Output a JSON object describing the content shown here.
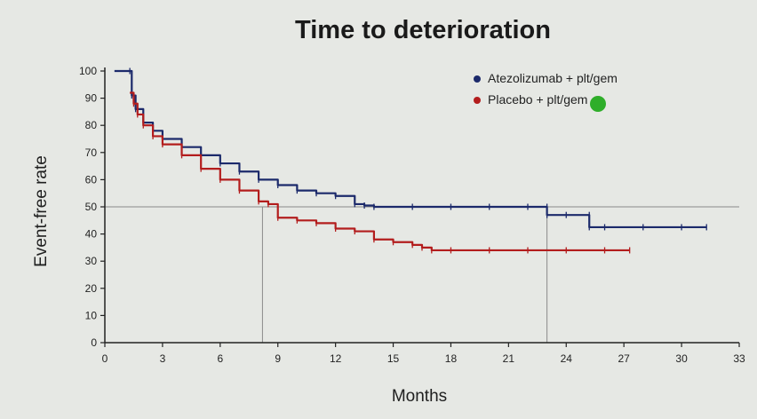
{
  "colors": {
    "atezolizumab": "#1c2a6b",
    "placebo": "#b31d1d",
    "axis": "#222222",
    "reference_line": "#8a8a8a",
    "marker_dot": "#2fae2a"
  },
  "chart_data": {
    "type": "line",
    "title": "Time to deterioration",
    "xlabel": "Months",
    "ylabel": "Event-free rate",
    "xlim": [
      0,
      33
    ],
    "ylim": [
      0,
      100
    ],
    "xticks": [
      "0",
      "3",
      "6",
      "9",
      "12",
      "15",
      "18",
      "21",
      "24",
      "27",
      "30",
      "33"
    ],
    "yticks": [
      "0",
      "10",
      "20",
      "30",
      "40",
      "50",
      "60",
      "70",
      "80",
      "90",
      "100"
    ],
    "grid": false,
    "legend_position": "top-right",
    "reference_lines": {
      "y": 50,
      "x": [
        8.2,
        23.0
      ]
    },
    "series": [
      {
        "name": "Atezolizumab + plt/gem",
        "color_key": "atezolizumab",
        "x": [
          0.5,
          1.3,
          1.4,
          1.6,
          2.0,
          2.5,
          3.0,
          4.0,
          5.0,
          6.0,
          7.0,
          8.0,
          9.0,
          10.0,
          11.0,
          12.0,
          13.0,
          13.5,
          14.0,
          16.0,
          18.0,
          20.0,
          22.0,
          23.0,
          23.0,
          24.0,
          25.2,
          25.2,
          26.0,
          28.0,
          30.0,
          31.3
        ],
        "y": [
          100,
          100,
          91,
          86,
          81,
          78,
          75,
          72,
          69,
          66,
          63,
          60,
          58,
          56,
          55,
          54,
          51,
          50.5,
          50,
          50,
          50,
          50,
          50,
          50,
          47,
          47,
          47,
          42.5,
          42.5,
          42.5,
          42.5,
          42.5
        ]
      },
      {
        "name": "Placebo + plt/gem",
        "color_key": "placebo",
        "x": [
          1.3,
          1.5,
          1.7,
          2.0,
          2.5,
          3.0,
          4.0,
          5.0,
          6.0,
          7.0,
          8.0,
          8.5,
          9.0,
          10.0,
          11.0,
          12.0,
          13.0,
          14.0,
          15.0,
          16.0,
          16.5,
          17.0,
          18.0,
          20.0,
          22.0,
          24.0,
          26.0,
          27.3
        ],
        "y": [
          92,
          88,
          84,
          80,
          76,
          73,
          69,
          64,
          60,
          56,
          52,
          51,
          46,
          45,
          44,
          42,
          41,
          38,
          37,
          36,
          35,
          34,
          34,
          34,
          34,
          34,
          34,
          34
        ]
      }
    ]
  }
}
